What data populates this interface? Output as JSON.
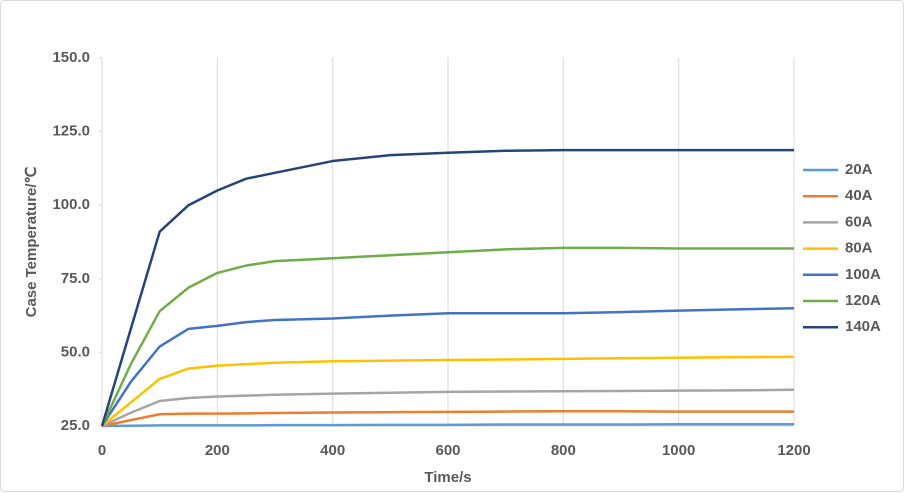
{
  "chart_data": {
    "type": "line",
    "x_label": "Time/s",
    "y_label": "Case Temperature/℃",
    "x": [
      0,
      50,
      100,
      150,
      200,
      250,
      300,
      400,
      500,
      600,
      700,
      800,
      900,
      1000,
      1100,
      1200
    ],
    "xlim": [
      0,
      1200
    ],
    "xticks": [
      0,
      200,
      400,
      600,
      800,
      1000,
      1200
    ],
    "ylim": [
      25,
      150
    ],
    "yticks": [
      {
        "value": 25,
        "label": "25.0"
      },
      {
        "value": 50,
        "label": "50.0"
      },
      {
        "value": 75,
        "label": "75.0"
      },
      {
        "value": 100,
        "label": "100.0"
      },
      {
        "value": 125,
        "label": "125.0"
      },
      {
        "value": 150,
        "label": "150.0"
      }
    ],
    "grid": "x",
    "legend": "right",
    "series": [
      {
        "name": "20A",
        "color": "#5b9bd5",
        "values": [
          25,
          25.1,
          25.2,
          25.2,
          25.2,
          25.2,
          25.3,
          25.3,
          25.4,
          25.4,
          25.5,
          25.5,
          25.5,
          25.6,
          25.6,
          25.6
        ]
      },
      {
        "name": "40A",
        "color": "#ed7d31",
        "values": [
          25,
          27,
          29,
          29.2,
          29.2,
          29.3,
          29.4,
          29.6,
          29.7,
          29.8,
          29.9,
          30,
          30,
          29.9,
          29.9,
          29.9
        ]
      },
      {
        "name": "60A",
        "color": "#a5a5a5",
        "values": [
          25,
          29.5,
          33.5,
          34.5,
          35,
          35.3,
          35.6,
          36,
          36.3,
          36.6,
          36.7,
          36.8,
          36.9,
          37,
          37.1,
          37.3
        ]
      },
      {
        "name": "80A",
        "color": "#ffc000",
        "values": [
          25,
          33,
          41,
          44.5,
          45.5,
          46,
          46.5,
          47,
          47.2,
          47.4,
          47.6,
          47.8,
          48,
          48.2,
          48.4,
          48.5
        ]
      },
      {
        "name": "100A",
        "color": "#4472c4",
        "values": [
          25,
          40,
          52,
          58,
          59,
          60.3,
          61,
          61.5,
          62.5,
          63.3,
          63.3,
          63.3,
          63.7,
          64.2,
          64.6,
          65
        ]
      },
      {
        "name": "120A",
        "color": "#70ad47",
        "values": [
          25,
          46,
          64,
          72,
          77,
          79.5,
          81,
          82,
          83,
          84,
          85,
          85.5,
          85.5,
          85.3,
          85.3,
          85.3
        ]
      },
      {
        "name": "140A",
        "color": "#264478",
        "values": [
          25,
          58,
          91,
          100,
          105,
          109,
          111,
          115,
          117,
          117.8,
          118.5,
          118.7,
          118.7,
          118.7,
          118.7,
          118.7
        ]
      }
    ]
  }
}
